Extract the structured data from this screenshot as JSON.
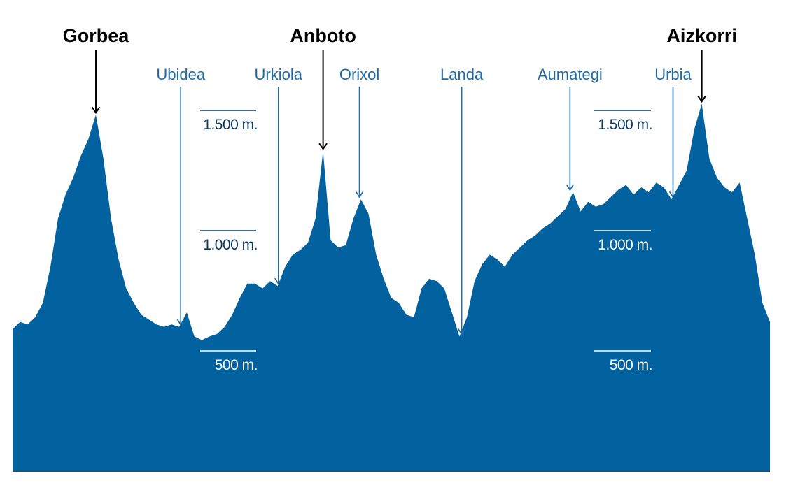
{
  "chart_data": {
    "type": "area",
    "title": "",
    "xlabel": "",
    "ylabel": "",
    "ylim": [
      0,
      1750
    ],
    "grid": false,
    "colors": {
      "fill": "#0262a0",
      "peak_marker": "#000000",
      "place_marker": "#1f6aa5",
      "scale_dark": "#0b3a60",
      "scale_light": "#ffffff",
      "baseline": "#000000"
    },
    "scale_ticks": [
      {
        "value": 1500,
        "label": "1.500 m."
      },
      {
        "value": 1000,
        "label": "1.000 m."
      },
      {
        "value": 500,
        "label": "500 m."
      }
    ],
    "peaks": [
      {
        "name": "Gorbea",
        "x": 11,
        "elevation": 1482
      },
      {
        "name": "Anboto",
        "x": 41,
        "elevation": 1331
      },
      {
        "name": "Aizkorri",
        "x": 91,
        "elevation": 1528
      }
    ],
    "places": [
      {
        "name": "Ubidea",
        "x": 22.2,
        "elevation": 600
      },
      {
        "name": "Urkiola",
        "x": 35.1,
        "elevation": 770
      },
      {
        "name": "Orixol",
        "x": 45.8,
        "elevation": 1130
      },
      {
        "name": "Landa",
        "x": 59.3,
        "elevation": 560
      },
      {
        "name": "Aumategi",
        "x": 73.6,
        "elevation": 1160
      },
      {
        "name": "Urbia",
        "x": 87.2,
        "elevation": 1130
      }
    ],
    "x": [
      0,
      1,
      2,
      3,
      4,
      5,
      6,
      7,
      8,
      9,
      10,
      11,
      12,
      13,
      14,
      15,
      16,
      17,
      18,
      19,
      20,
      21,
      22,
      23,
      24,
      25,
      26,
      27,
      28,
      29,
      30,
      31,
      32,
      33,
      34,
      35,
      36,
      37,
      38,
      39,
      40,
      41,
      42,
      43,
      44,
      45,
      46,
      47,
      48,
      49,
      50,
      51,
      52,
      53,
      54,
      55,
      56,
      57,
      58,
      59,
      60,
      61,
      62,
      63,
      64,
      65,
      66,
      67,
      68,
      69,
      70,
      71,
      72,
      73,
      74,
      75,
      76,
      77,
      78,
      79,
      80,
      81,
      82,
      83,
      84,
      85,
      86,
      87,
      88,
      89,
      90,
      91,
      92,
      93,
      94,
      95,
      96,
      97,
      98,
      99,
      100
    ],
    "series": [
      {
        "values": [
          590,
          620,
          610,
          640,
          700,
          850,
          1050,
          1150,
          1220,
          1310,
          1380,
          1482,
          1300,
          1050,
          880,
          760,
          700,
          650,
          630,
          610,
          600,
          610,
          600,
          660,
          560,
          545,
          560,
          570,
          600,
          650,
          720,
          780,
          780,
          760,
          790,
          770,
          850,
          900,
          920,
          950,
          1050,
          1331,
          960,
          930,
          940,
          1050,
          1130,
          1070,
          900,
          800,
          720,
          700,
          650,
          640,
          760,
          800,
          790,
          760,
          660,
          560,
          640,
          790,
          860,
          900,
          880,
          850,
          900,
          930,
          960,
          980,
          1010,
          1030,
          1060,
          1090,
          1160,
          1080,
          1120,
          1100,
          1110,
          1140,
          1170,
          1190,
          1150,
          1180,
          1160,
          1200,
          1180,
          1130,
          1190,
          1250,
          1420,
          1528,
          1300,
          1220,
          1180,
          1160,
          1200,
          1050,
          900,
          700,
          620
        ]
      }
    ]
  }
}
